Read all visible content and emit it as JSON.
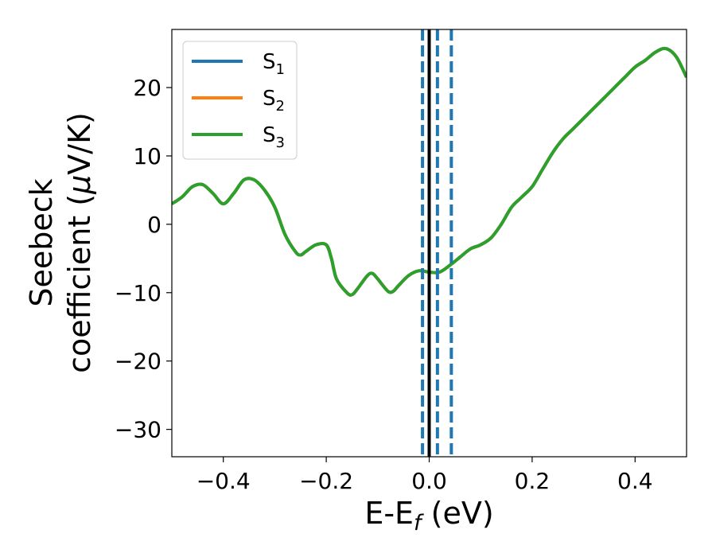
{
  "chart_data": {
    "type": "line",
    "xlabel": "E-E",
    "xlabel_sub": "f",
    "xlabel_unit": " (eV)",
    "ylabel_line1": "Seebeck",
    "ylabel_line2": "coefficient  (",
    "ylabel_mu": "μ",
    "ylabel_unit": "V/K)",
    "xlim": [
      -0.5,
      0.5
    ],
    "ylim": [
      -34,
      28.5
    ],
    "xticks": [
      -0.4,
      -0.2,
      0.0,
      0.2,
      0.4
    ],
    "xtick_labels": [
      "−0.4",
      "−0.2",
      "0.0",
      "0.2",
      "0.4"
    ],
    "yticks": [
      -30,
      -20,
      -10,
      0,
      10,
      20
    ],
    "ytick_labels": [
      "−30",
      "−20",
      "−10",
      "0",
      "10",
      "20"
    ],
    "grid": false,
    "legend_position": "top-left",
    "series": [
      {
        "name": "S",
        "sub": "1",
        "color": "#1f77b4"
      },
      {
        "name": "S",
        "sub": "2",
        "color": "#ff7f0e"
      },
      {
        "name": "S",
        "sub": "3",
        "color": "#2ca02c"
      }
    ],
    "x": [
      -0.5,
      -0.48,
      -0.46,
      -0.44,
      -0.42,
      -0.4,
      -0.38,
      -0.36,
      -0.34,
      -0.32,
      -0.3,
      -0.28,
      -0.26,
      -0.25,
      -0.24,
      -0.22,
      -0.2,
      -0.19,
      -0.18,
      -0.16,
      -0.15,
      -0.14,
      -0.12,
      -0.11,
      -0.1,
      -0.08,
      -0.07,
      -0.06,
      -0.04,
      -0.02,
      0.0,
      0.02,
      0.04,
      0.06,
      0.08,
      0.1,
      0.12,
      0.14,
      0.16,
      0.18,
      0.2,
      0.22,
      0.24,
      0.26,
      0.28,
      0.3,
      0.32,
      0.34,
      0.36,
      0.38,
      0.4,
      0.42,
      0.44,
      0.46,
      0.48,
      0.5
    ],
    "y": [
      3.0,
      4.0,
      5.5,
      5.8,
      4.5,
      3.0,
      4.5,
      6.5,
      6.5,
      5.0,
      2.5,
      -1.5,
      -4.0,
      -4.5,
      -4.0,
      -3.0,
      -3.0,
      -5.0,
      -8.0,
      -10.0,
      -10.3,
      -9.5,
      -7.5,
      -7.2,
      -8.0,
      -9.8,
      -9.8,
      -9.0,
      -7.5,
      -6.8,
      -7.0,
      -7.0,
      -6.0,
      -4.8,
      -3.6,
      -3.0,
      -2.0,
      0.0,
      2.5,
      4.0,
      5.5,
      8.0,
      10.5,
      12.5,
      14.0,
      15.5,
      17.0,
      18.5,
      20.0,
      21.5,
      23.0,
      24.0,
      25.2,
      25.7,
      24.5,
      21.5
    ],
    "vlines": [
      {
        "x": 0.0,
        "style": "solid",
        "color": "#000000"
      },
      {
        "x": -0.013,
        "style": "dashed",
        "color": "#1f77b4"
      },
      {
        "x": 0.016,
        "style": "dashed",
        "color": "#1f77b4"
      },
      {
        "x": 0.043,
        "style": "dashed",
        "color": "#1f77b4"
      }
    ]
  }
}
